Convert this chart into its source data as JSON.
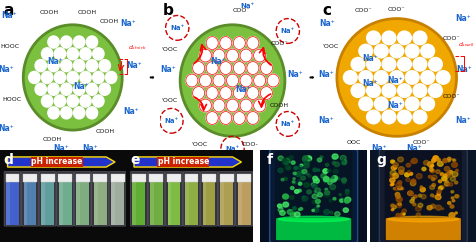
{
  "panel_labels": [
    "a",
    "b",
    "c",
    "d",
    "e",
    "f",
    "g"
  ],
  "bg_color": "white",
  "panel_a": {
    "ball_color": "#7cc040",
    "ball_border": "#5a8c2a",
    "hole_color": "white",
    "na_color": "#1a66cc",
    "cooh_color": "#111111",
    "shrink_color": "#cc0000"
  },
  "panel_b": {
    "ball_color": "#7cc040",
    "ball_border": "#5a8c2a",
    "hole_color": "white",
    "na_color": "#1a66cc",
    "coo_color": "#cc0000",
    "cooh_color": "#111111",
    "red_circle_color": "#cc0000"
  },
  "panel_c": {
    "ball_color": "#f0a800",
    "ball_border": "#c88000",
    "hole_color": "white",
    "na_color": "#1a66cc",
    "coo_color": "#111111",
    "swell_color": "#cc0000"
  },
  "figure_width": 4.77,
  "figure_height": 2.42,
  "dpi": 100
}
